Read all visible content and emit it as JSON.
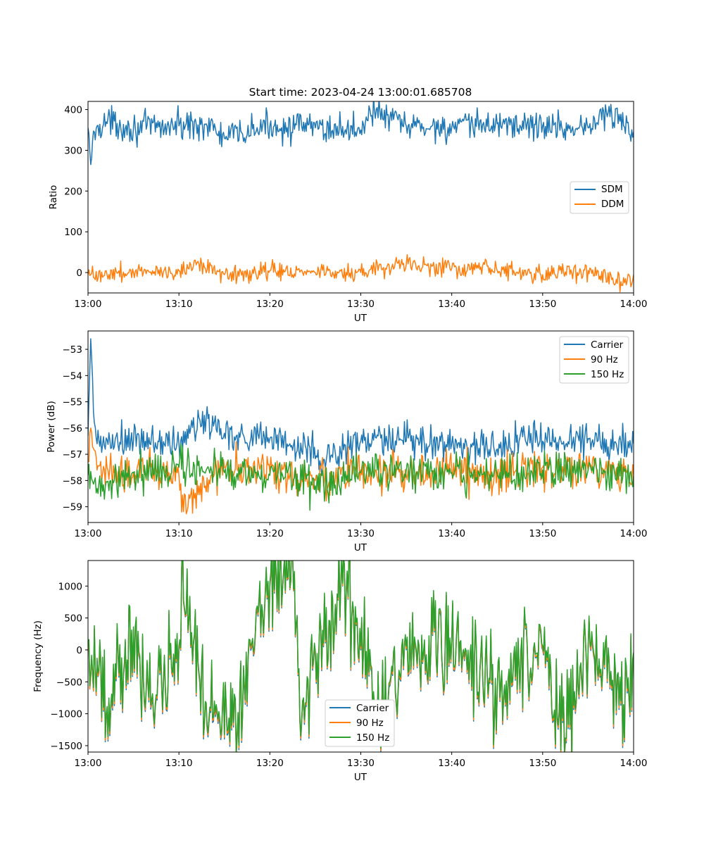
{
  "colors": {
    "blue": "#1f77b4",
    "orange": "#ff7f0e",
    "green": "#2ca02c"
  },
  "chart_data": [
    {
      "type": "line",
      "title": "Start time: 2023-04-24 13:00:01.685708",
      "xlabel": "UT",
      "ylabel": "Ratio",
      "xlim": [
        "13:00",
        "14:00"
      ],
      "xticks": [
        "13:00",
        "13:10",
        "13:20",
        "13:30",
        "13:40",
        "13:50",
        "14:00"
      ],
      "ylim": [
        -50,
        420
      ],
      "yticks": [
        0,
        100,
        200,
        300,
        400
      ],
      "legend": "center-right",
      "grid": false,
      "series": [
        {
          "name": "SDM",
          "color": "#1f77b4",
          "x": [
            "13:00",
            "13:00:20",
            "13:00:40",
            "13:01",
            "13:02",
            "13:05",
            "13:10",
            "13:13",
            "13:15",
            "13:20",
            "13:25",
            "13:30",
            "13:31",
            "13:35",
            "13:40",
            "13:45",
            "13:50",
            "13:55",
            "13:57",
            "14:00"
          ],
          "y": [
            355,
            265,
            345,
            360,
            370,
            355,
            360,
            365,
            330,
            360,
            355,
            350,
            400,
            360,
            355,
            365,
            360,
            355,
            395,
            345
          ],
          "noise": 18
        },
        {
          "name": "DDM",
          "color": "#ff7f0e",
          "x": [
            "13:00",
            "13:05",
            "13:10",
            "13:12",
            "13:15",
            "13:20",
            "13:25",
            "13:30",
            "13:35",
            "13:40",
            "13:45",
            "13:50",
            "13:55",
            "13:59",
            "14:00"
          ],
          "y": [
            -5,
            0,
            5,
            25,
            -5,
            5,
            0,
            0,
            20,
            10,
            5,
            -5,
            5,
            -25,
            -5
          ],
          "noise": 11
        }
      ]
    },
    {
      "type": "line",
      "title": "",
      "xlabel": "UT",
      "ylabel": "Power (dB)",
      "xlim": [
        "13:00",
        "14:00"
      ],
      "xticks": [
        "13:00",
        "13:10",
        "13:20",
        "13:30",
        "13:40",
        "13:50",
        "14:00"
      ],
      "ylim": [
        -59.6,
        -52.3
      ],
      "yticks": [
        -59,
        -58,
        -57,
        -56,
        -55,
        -54,
        -53
      ],
      "legend": "top-right",
      "grid": false,
      "series": [
        {
          "name": "Carrier",
          "color": "#1f77b4",
          "x": [
            "13:00",
            "13:00:20",
            "13:00:40",
            "13:01",
            "13:05",
            "13:10",
            "13:13",
            "13:15",
            "13:20",
            "13:24",
            "13:26",
            "13:30",
            "13:35",
            "13:40",
            "13:45",
            "13:48",
            "13:50",
            "13:55",
            "14:00"
          ],
          "y": [
            -56.3,
            -52.6,
            -55.8,
            -56.6,
            -56.5,
            -56.6,
            -55.6,
            -56.2,
            -56.4,
            -56.8,
            -57.2,
            -56.5,
            -56.5,
            -56.6,
            -56.8,
            -56.2,
            -56.5,
            -56.4,
            -56.6
          ],
          "noise": 0.35
        },
        {
          "name": "90 Hz",
          "color": "#ff7f0e",
          "x": [
            "13:00",
            "13:00:20",
            "13:01",
            "13:05",
            "13:10",
            "13:10:20",
            "13:15",
            "13:20",
            "13:25",
            "13:30",
            "13:35",
            "13:40",
            "13:45",
            "13:50",
            "13:55",
            "14:00"
          ],
          "y": [
            -57.3,
            -56.0,
            -57.6,
            -57.7,
            -57.8,
            -59.2,
            -57.5,
            -57.7,
            -58.0,
            -57.6,
            -57.8,
            -57.6,
            -57.8,
            -57.5,
            -57.6,
            -57.8
          ],
          "noise": 0.38
        },
        {
          "name": "150 Hz",
          "color": "#2ca02c",
          "x": [
            "13:00",
            "13:01",
            "13:05",
            "13:10",
            "13:15",
            "13:20",
            "13:25",
            "13:30",
            "13:35",
            "13:40",
            "13:45",
            "13:50",
            "13:55",
            "14:00"
          ],
          "y": [
            -57.8,
            -58.3,
            -57.7,
            -57.5,
            -57.7,
            -57.8,
            -58.2,
            -57.7,
            -57.6,
            -57.7,
            -57.8,
            -57.6,
            -57.6,
            -57.8
          ],
          "noise": 0.35
        }
      ]
    },
    {
      "type": "line",
      "title": "",
      "xlabel": "UT",
      "ylabel": "Frequency (Hz)",
      "xlim": [
        "13:00",
        "14:00"
      ],
      "xticks": [
        "13:00",
        "13:10",
        "13:20",
        "13:30",
        "13:40",
        "13:50",
        "14:00"
      ],
      "ylim": [
        -1600,
        1400
      ],
      "yticks": [
        -1500,
        -1000,
        -500,
        0,
        500,
        1000
      ],
      "legend": "bottom-center",
      "grid": false,
      "series": [
        {
          "name": "Carrier",
          "color": "#1f77b4",
          "x": [
            "13:00",
            "13:02:30",
            "13:05",
            "13:07",
            "13:10",
            "13:10:20",
            "13:13",
            "13:16:30",
            "13:20",
            "13:22:40",
            "13:23:30",
            "13:28",
            "13:30",
            "13:32",
            "13:35",
            "13:40",
            "13:45",
            "13:50",
            "13:52:30",
            "13:55",
            "13:59:30",
            "14:00"
          ],
          "y": [
            0,
            -950,
            300,
            -850,
            0,
            1250,
            -900,
            -1050,
            1000,
            1200,
            -1150,
            1000,
            0,
            -1150,
            0,
            100,
            -700,
            0,
            -1450,
            0,
            -800,
            -100
          ],
          "noise": 380
        },
        {
          "name": "90 Hz",
          "color": "#ff7f0e",
          "x": [
            "13:00",
            "13:02:30",
            "13:05",
            "13:07",
            "13:10",
            "13:10:20",
            "13:13",
            "13:16:30",
            "13:20",
            "13:22:40",
            "13:23:30",
            "13:28",
            "13:30",
            "13:32",
            "13:35",
            "13:40",
            "13:45",
            "13:50",
            "13:52:30",
            "13:55",
            "13:59:30",
            "14:00"
          ],
          "y": [
            0,
            -920,
            320,
            -820,
            20,
            1260,
            -870,
            -1020,
            1020,
            1210,
            -1120,
            1010,
            20,
            -1120,
            20,
            120,
            -680,
            20,
            -1420,
            20,
            -770,
            -80
          ],
          "noise": 380
        },
        {
          "name": "150 Hz",
          "color": "#2ca02c",
          "x": [
            "13:00",
            "13:02:30",
            "13:05",
            "13:07",
            "13:10",
            "13:10:20",
            "13:13",
            "13:16:30",
            "13:20",
            "13:22:40",
            "13:23:30",
            "13:28",
            "13:30",
            "13:32",
            "13:35",
            "13:40",
            "13:45",
            "13:50",
            "13:52:30",
            "13:55",
            "13:59:30",
            "14:00"
          ],
          "y": [
            50,
            -880,
            360,
            -780,
            60,
            1280,
            -830,
            -980,
            1060,
            1230,
            -1080,
            1040,
            60,
            -1080,
            60,
            160,
            -640,
            60,
            -1380,
            60,
            -730,
            -40
          ],
          "noise": 380
        }
      ]
    }
  ]
}
